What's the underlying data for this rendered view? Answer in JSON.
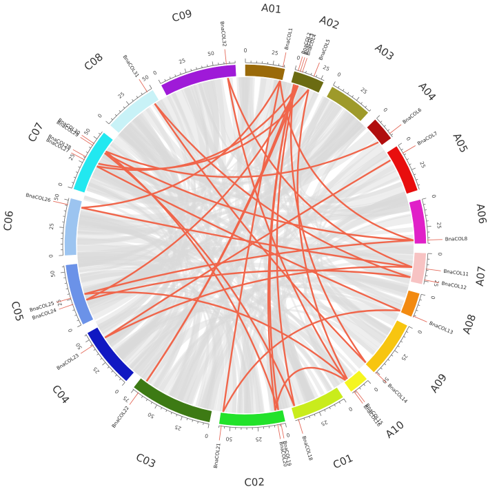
{
  "chart_data": {
    "type": "circos",
    "chromosomes": [
      {
        "name": "A01",
        "color": "#9a6a0a",
        "length": 36,
        "ticks": [
          0,
          25
        ]
      },
      {
        "name": "A02",
        "color": "#6b6b12",
        "length": 28,
        "ticks": [
          0,
          25
        ]
      },
      {
        "name": "A03",
        "color": "#9e9a2a",
        "length": 40,
        "ticks": [
          0,
          25
        ]
      },
      {
        "name": "A04",
        "color": "#b00e0e",
        "length": 22,
        "ticks": [
          0
        ]
      },
      {
        "name": "A05",
        "color": "#e80e0e",
        "length": 44,
        "ticks": [
          0,
          25
        ]
      },
      {
        "name": "A06",
        "color": "#e020c8",
        "length": 40,
        "ticks": [
          0,
          25
        ]
      },
      {
        "name": "A07",
        "color": "#f7c3c3",
        "length": 28,
        "ticks": [
          0,
          25
        ]
      },
      {
        "name": "A08",
        "color": "#f28a10",
        "length": 22,
        "ticks": [
          0
        ]
      },
      {
        "name": "A09",
        "color": "#f7c510",
        "length": 52,
        "ticks": [
          0,
          25,
          50
        ]
      },
      {
        "name": "A10",
        "color": "#f5f520",
        "length": 18,
        "ticks": [
          0
        ]
      },
      {
        "name": "C01",
        "color": "#c9ec1c",
        "length": 48,
        "ticks": [
          0,
          25
        ]
      },
      {
        "name": "C02",
        "color": "#22e22a",
        "length": 60,
        "ticks": [
          0,
          25,
          50
        ]
      },
      {
        "name": "C03",
        "color": "#3d7a14",
        "length": 76,
        "ticks": [
          0,
          25,
          50,
          75
        ]
      },
      {
        "name": "C04",
        "color": "#1018c2",
        "length": 56,
        "ticks": [
          0,
          25,
          50
        ]
      },
      {
        "name": "C05",
        "color": "#6b92e8",
        "length": 56,
        "ticks": [
          0,
          25,
          50
        ]
      },
      {
        "name": "C06",
        "color": "#9cc4f0",
        "length": 52,
        "ticks": [
          0,
          25,
          50
        ]
      },
      {
        "name": "C07",
        "color": "#22e8f0",
        "length": 58,
        "ticks": [
          0,
          25,
          50
        ]
      },
      {
        "name": "C08",
        "color": "#c8f2f7",
        "length": 50,
        "ticks": [
          0,
          25,
          50
        ]
      },
      {
        "name": "C09",
        "color": "#9f1ad8",
        "length": 70,
        "ticks": [
          0,
          25,
          50
        ]
      }
    ],
    "genes": [
      {
        "name": "BnaCOL1",
        "chr": "A01",
        "pos": 34
      },
      {
        "name": "BnaCOL2",
        "chr": "A02",
        "pos": 3
      },
      {
        "name": "BnaCOL3",
        "chr": "A02",
        "pos": 5
      },
      {
        "name": "BnaCOL4",
        "chr": "A02",
        "pos": 7
      },
      {
        "name": "BnaCOL5",
        "chr": "A02",
        "pos": 18
      },
      {
        "name": "BnaCOL6",
        "chr": "A04",
        "pos": 18
      },
      {
        "name": "BnaCOL7",
        "chr": "A05",
        "pos": 8
      },
      {
        "name": "BnaCOL8",
        "chr": "A06",
        "pos": 37
      },
      {
        "name": "BnaCOL11",
        "chr": "A07",
        "pos": 14
      },
      {
        "name": "BnaCOL12",
        "chr": "A07",
        "pos": 24
      },
      {
        "name": "BnaCOL13",
        "chr": "A08",
        "pos": 21
      },
      {
        "name": "BnaCOL14",
        "chr": "A09",
        "pos": 51
      },
      {
        "name": "BnaCOL15",
        "chr": "A10",
        "pos": 14
      },
      {
        "name": "BnaCOL16",
        "chr": "A10",
        "pos": 16
      },
      {
        "name": "BnaCOL18",
        "chr": "C01",
        "pos": 45
      },
      {
        "name": "BnaCOL19",
        "chr": "C02",
        "pos": 4
      },
      {
        "name": "BnaCOL20",
        "chr": "C02",
        "pos": 7
      },
      {
        "name": "BnaCOL21",
        "chr": "C02",
        "pos": 58
      },
      {
        "name": "BnaCOL22",
        "chr": "C03",
        "pos": 70
      },
      {
        "name": "BnaCOL23",
        "chr": "C04",
        "pos": 44
      },
      {
        "name": "BnaCOL24",
        "chr": "C05",
        "pos": 20
      },
      {
        "name": "BnaCOL25",
        "chr": "C05",
        "pos": 26
      },
      {
        "name": "BnaCOL26",
        "chr": "C06",
        "pos": 46
      },
      {
        "name": "BnaCOL27",
        "chr": "C07",
        "pos": 28
      },
      {
        "name": "BnaCOL28",
        "chr": "C07",
        "pos": 31
      },
      {
        "name": "BnaCOL29",
        "chr": "C07",
        "pos": 43
      },
      {
        "name": "BnaCOL30",
        "chr": "C07",
        "pos": 45
      },
      {
        "name": "BnaCOL31",
        "chr": "C08",
        "pos": 45
      },
      {
        "name": "BnaCOL32",
        "chr": "C09",
        "pos": 62
      }
    ],
    "links": [
      [
        "BnaCOL1",
        "BnaCOL21"
      ],
      [
        "BnaCOL1",
        "BnaCOL26"
      ],
      [
        "BnaCOL2",
        "BnaCOL19"
      ],
      [
        "BnaCOL2",
        "BnaCOL20"
      ],
      [
        "BnaCOL3",
        "BnaCOL18"
      ],
      [
        "BnaCOL3",
        "BnaCOL22"
      ],
      [
        "BnaCOL4",
        "BnaCOL24"
      ],
      [
        "BnaCOL4",
        "BnaCOL27"
      ],
      [
        "BnaCOL5",
        "BnaCOL15"
      ],
      [
        "BnaCOL5",
        "BnaCOL28"
      ],
      [
        "BnaCOL6",
        "BnaCOL30"
      ],
      [
        "BnaCOL7",
        "BnaCOL23"
      ],
      [
        "BnaCOL8",
        "BnaCOL29"
      ],
      [
        "BnaCOL8",
        "BnaCOL25"
      ],
      [
        "BnaCOL11",
        "BnaCOL26"
      ],
      [
        "BnaCOL11",
        "BnaCOL32"
      ],
      [
        "BnaCOL12",
        "BnaCOL31"
      ],
      [
        "BnaCOL12",
        "BnaCOL24"
      ],
      [
        "BnaCOL13",
        "BnaCOL27"
      ],
      [
        "BnaCOL13",
        "BnaCOL21"
      ],
      [
        "BnaCOL14",
        "BnaCOL2"
      ],
      [
        "BnaCOL14",
        "BnaCOL31"
      ],
      [
        "BnaCOL16",
        "BnaCOL32"
      ],
      [
        "BnaCOL16",
        "BnaCOL20"
      ],
      [
        "BnaCOL18",
        "BnaCOL29"
      ],
      [
        "BnaCOL19",
        "BnaCOL30"
      ],
      [
        "BnaCOL22",
        "BnaCOL4"
      ],
      [
        "BnaCOL23",
        "BnaCOL11"
      ],
      [
        "BnaCOL25",
        "BnaCOL15"
      ],
      [
        "BnaCOL1",
        "BnaCOL8"
      ]
    ],
    "background_link_color": "#d9d9d9",
    "highlight_link_color": "#f0654a"
  }
}
